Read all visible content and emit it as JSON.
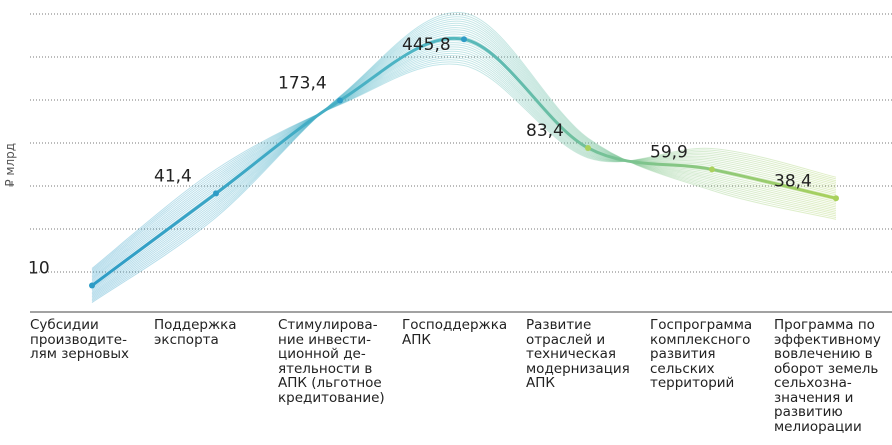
{
  "chart_data": {
    "type": "line",
    "y_label": "₽ млрд",
    "categories": [
      "Субсидии производите-лям зерновых",
      "Поддержка экспорта",
      "Стимулирова-ние инвести-ционной де-ятельности в АПК (льготное кредитование)",
      "Господдержка АПК",
      "Развитие отраслей и техническая модернизация АПК",
      "Госпрограмма комплексного развития сельских территорий",
      "Программа по эффективному вовлечению в оборот земель сельхозна-значения и развитию мелиорации"
    ],
    "values": [
      10,
      41.4,
      173.4,
      445.8,
      83.4,
      59.9,
      38.4
    ],
    "value_labels": [
      "10",
      "41,4",
      "173,4",
      "445,8",
      "83,4",
      "59,9",
      "38,4"
    ],
    "log_scale": true,
    "ylim": [
      8,
      600
    ],
    "colors": [
      "#2e9cc6",
      "#4fb6c4",
      "#a9d15c"
    ]
  }
}
